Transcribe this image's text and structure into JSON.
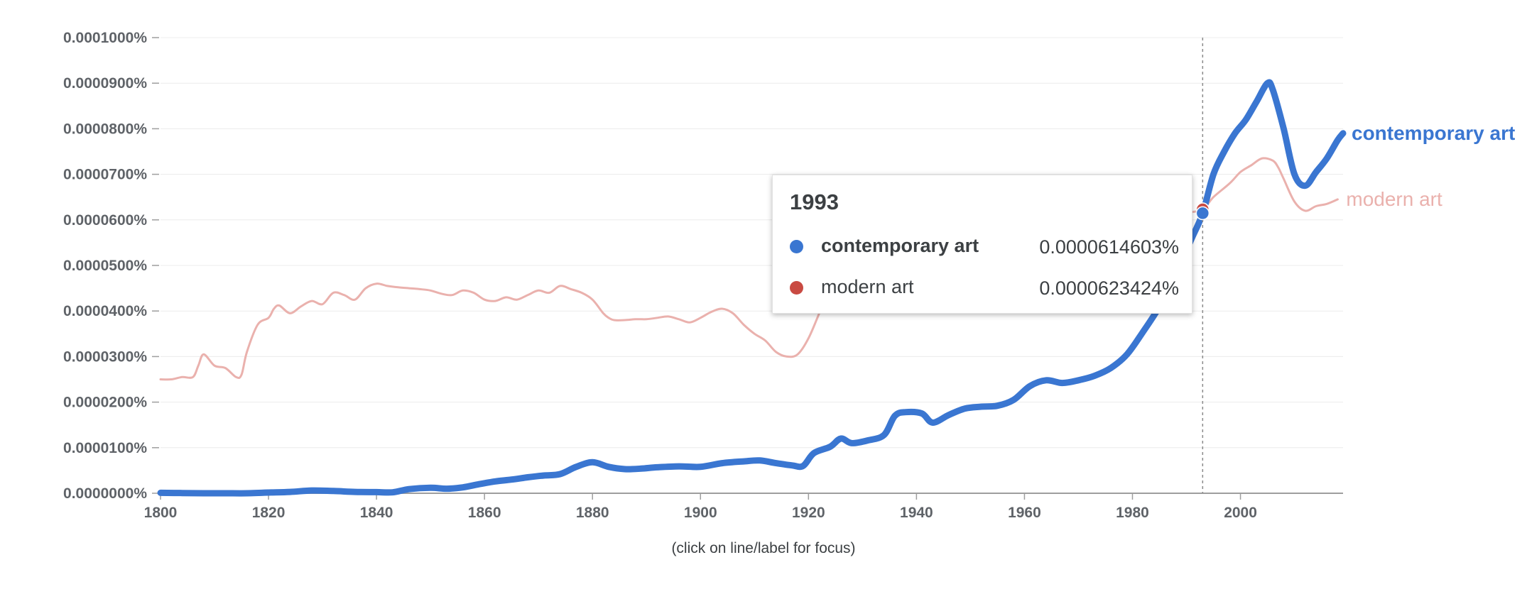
{
  "chart_data": {
    "type": "line",
    "x_range": [
      1800,
      2019
    ],
    "ylim": [
      0,
      0.0001
    ],
    "y_ticks": [
      "0.0000000%",
      "0.0000100%",
      "0.0000200%",
      "0.0000300%",
      "0.0000400%",
      "0.0000500%",
      "0.0000600%",
      "0.0000700%",
      "0.0000800%",
      "0.0000900%",
      "0.0001000%"
    ],
    "x_ticks": [
      "1800",
      "1820",
      "1840",
      "1860",
      "1880",
      "1900",
      "1920",
      "1940",
      "1960",
      "1980",
      "2000"
    ],
    "grid": true,
    "series": [
      {
        "name": "modern art",
        "color": "#eab1ad",
        "x": [
          1800,
          1802,
          1804,
          1806,
          1807,
          1808,
          1810,
          1812,
          1814,
          1815,
          1816,
          1818,
          1820,
          1821,
          1822,
          1824,
          1826,
          1828,
          1830,
          1832,
          1834,
          1836,
          1838,
          1840,
          1842,
          1844,
          1846,
          1848,
          1850,
          1852,
          1854,
          1856,
          1858,
          1860,
          1862,
          1864,
          1866,
          1868,
          1870,
          1872,
          1874,
          1876,
          1878,
          1880,
          1882,
          1883,
          1884,
          1886,
          1888,
          1890,
          1892,
          1894,
          1896,
          1898,
          1900,
          1902,
          1904,
          1906,
          1908,
          1910,
          1912,
          1914,
          1916,
          1918,
          1920,
          1922,
          1924,
          1926,
          1928,
          1930,
          1935,
          1940,
          1945,
          1950,
          1955,
          1960,
          1965,
          1970,
          1975,
          1980,
          1985,
          1990,
          1993,
          1995,
          1998,
          2000,
          2002,
          2004,
          2006,
          2007,
          2008,
          2010,
          2012,
          2014,
          2016,
          2018
        ],
        "y": [
          2.5e-05,
          2.5e-05,
          2.55e-05,
          2.55e-05,
          2.8e-05,
          3.05e-05,
          2.8e-05,
          2.75e-05,
          2.55e-05,
          2.6e-05,
          3.1e-05,
          3.7e-05,
          3.85e-05,
          4.05e-05,
          4.12e-05,
          3.95e-05,
          4.1e-05,
          4.22e-05,
          4.15e-05,
          4.4e-05,
          4.35e-05,
          4.25e-05,
          4.5e-05,
          4.6e-05,
          4.55e-05,
          4.52e-05,
          4.5e-05,
          4.48e-05,
          4.45e-05,
          4.38e-05,
          4.35e-05,
          4.45e-05,
          4.4e-05,
          4.25e-05,
          4.22e-05,
          4.3e-05,
          4.25e-05,
          4.35e-05,
          4.45e-05,
          4.4e-05,
          4.55e-05,
          4.48e-05,
          4.4e-05,
          4.25e-05,
          3.95e-05,
          3.85e-05,
          3.8e-05,
          3.8e-05,
          3.82e-05,
          3.82e-05,
          3.85e-05,
          3.88e-05,
          3.82e-05,
          3.75e-05,
          3.85e-05,
          3.98e-05,
          4.05e-05,
          3.95e-05,
          3.7e-05,
          3.5e-05,
          3.35e-05,
          3.1e-05,
          3e-05,
          3.05e-05,
          3.4e-05,
          3.95e-05,
          4.5e-05,
          4.85e-05,
          5e-05,
          5.05e-05,
          5.1e-05,
          5.15e-05,
          5.2e-05,
          5.2e-05,
          5.25e-05,
          5.35e-05,
          5.4e-05,
          5.5e-05,
          5.6e-05,
          5.8e-05,
          6e-05,
          6.15e-05,
          6.23e-05,
          6.5e-05,
          6.8e-05,
          7.05e-05,
          7.2e-05,
          7.35e-05,
          7.3e-05,
          7.15e-05,
          6.9e-05,
          6.4e-05,
          6.2e-05,
          6.3e-05,
          6.35e-05,
          6.45e-05
        ]
      },
      {
        "name": "contemporary art",
        "color": "#3a76d1",
        "x": [
          1800,
          1804,
          1808,
          1812,
          1816,
          1820,
          1824,
          1828,
          1832,
          1836,
          1840,
          1843,
          1846,
          1850,
          1853,
          1856,
          1859,
          1862,
          1865,
          1868,
          1871,
          1874,
          1877,
          1880,
          1883,
          1886,
          1889,
          1892,
          1896,
          1900,
          1904,
          1908,
          1911,
          1914,
          1917,
          1919,
          1921,
          1924,
          1926,
          1928,
          1931,
          1934,
          1936,
          1938,
          1941,
          1943,
          1946,
          1949,
          1952,
          1955,
          1958,
          1961,
          1964,
          1967,
          1970,
          1973,
          1976,
          1979,
          1982,
          1985,
          1988,
          1991,
          1993,
          1995,
          1997,
          1999,
          2001,
          2003,
          2005,
          2006,
          2008,
          2010,
          2012,
          2014,
          2016,
          2018,
          2019
        ],
        "y": [
          1e-07,
          5e-08,
          0.0,
          0.0,
          0.0,
          1.5e-07,
          3e-07,
          6e-07,
          5e-07,
          3e-07,
          2.5e-07,
          2e-07,
          9e-07,
          1.2e-06,
          1e-06,
          1.3e-06,
          2e-06,
          2.6e-06,
          3e-06,
          3.5e-06,
          3.9e-06,
          4.2e-06,
          5.8e-06,
          6.8e-06,
          5.8e-06,
          5.3e-06,
          5.4e-06,
          5.7e-06,
          5.9e-06,
          5.8e-06,
          6.6e-06,
          7e-06,
          7.2e-06,
          6.6e-06,
          6.1e-06,
          6e-06,
          8.8e-06,
          1.02e-05,
          1.2e-05,
          1.1e-05,
          1.16e-05,
          1.28e-05,
          1.7e-05,
          1.78e-05,
          1.75e-05,
          1.55e-05,
          1.72e-05,
          1.86e-05,
          1.9e-05,
          1.92e-05,
          2.05e-05,
          2.35e-05,
          2.48e-05,
          2.42e-05,
          2.48e-05,
          2.58e-05,
          2.75e-05,
          3.05e-05,
          3.55e-05,
          4.1e-05,
          4.8e-05,
          5.6e-05,
          6.146e-05,
          7e-05,
          7.5e-05,
          7.9e-05,
          8.2e-05,
          8.6e-05,
          9e-05,
          8.85e-05,
          8e-05,
          7e-05,
          6.75e-05,
          7.05e-05,
          7.35e-05,
          7.75e-05,
          7.9e-05
        ]
      }
    ]
  },
  "tooltip": {
    "year": "1993",
    "rows": [
      {
        "name": "contemporary art",
        "value": "0.0000614603%",
        "color": "#3a76d1"
      },
      {
        "name": "modern art",
        "value": "0.0000623424%",
        "color": "#c94a42"
      }
    ]
  },
  "hover": {
    "x": 1993
  },
  "footer": {
    "hint": "(click on line/label for focus)"
  }
}
